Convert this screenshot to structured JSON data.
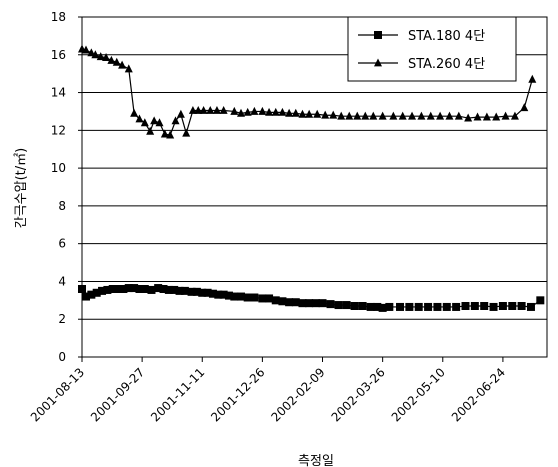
{
  "chart_data": {
    "type": "line",
    "title": "",
    "xlabel": "측정일",
    "ylabel": "간극수압(t/㎡)",
    "ylim": [
      0,
      18
    ],
    "yticks": [
      "0",
      "2",
      "4",
      "6",
      "8",
      "10",
      "12",
      "14",
      "16",
      "18"
    ],
    "xlim": [
      "2001-08-13",
      "2002-07-27"
    ],
    "xticks": [
      "2001-08-13",
      "2001-09-27",
      "2001-11-11",
      "2001-12-26",
      "2002-02-09",
      "2002-03-26",
      "2002-05-10",
      "2002-06-24"
    ],
    "grid": "horizontal",
    "legend_position": "top-right",
    "series": [
      {
        "name": "STA.180 4단",
        "marker": "square",
        "color": "#000000",
        "points": [
          [
            "2001-08-13",
            3.6
          ],
          [
            "2001-08-16",
            3.2
          ],
          [
            "2001-08-20",
            3.3
          ],
          [
            "2001-08-24",
            3.4
          ],
          [
            "2001-08-28",
            3.5
          ],
          [
            "2001-09-01",
            3.55
          ],
          [
            "2001-09-05",
            3.6
          ],
          [
            "2001-09-09",
            3.6
          ],
          [
            "2001-09-13",
            3.6
          ],
          [
            "2001-09-17",
            3.65
          ],
          [
            "2001-09-21",
            3.65
          ],
          [
            "2001-09-25",
            3.6
          ],
          [
            "2001-09-29",
            3.6
          ],
          [
            "2001-10-04",
            3.55
          ],
          [
            "2001-10-09",
            3.65
          ],
          [
            "2001-10-13",
            3.6
          ],
          [
            "2001-10-17",
            3.55
          ],
          [
            "2001-10-21",
            3.55
          ],
          [
            "2001-10-25",
            3.5
          ],
          [
            "2001-10-29",
            3.5
          ],
          [
            "2001-11-03",
            3.45
          ],
          [
            "2001-11-07",
            3.45
          ],
          [
            "2001-11-11",
            3.4
          ],
          [
            "2001-11-15",
            3.4
          ],
          [
            "2001-11-19",
            3.35
          ],
          [
            "2001-11-23",
            3.3
          ],
          [
            "2001-11-27",
            3.3
          ],
          [
            "2001-12-01",
            3.25
          ],
          [
            "2001-12-05",
            3.2
          ],
          [
            "2001-12-10",
            3.2
          ],
          [
            "2001-12-15",
            3.15
          ],
          [
            "2001-12-20",
            3.15
          ],
          [
            "2001-12-26",
            3.1
          ],
          [
            "2001-12-31",
            3.1
          ],
          [
            "2002-01-05",
            3.0
          ],
          [
            "2002-01-10",
            2.95
          ],
          [
            "2002-01-15",
            2.9
          ],
          [
            "2002-01-20",
            2.9
          ],
          [
            "2002-01-25",
            2.85
          ],
          [
            "2002-01-30",
            2.85
          ],
          [
            "2002-02-04",
            2.85
          ],
          [
            "2002-02-09",
            2.85
          ],
          [
            "2002-02-15",
            2.8
          ],
          [
            "2002-02-21",
            2.75
          ],
          [
            "2002-02-27",
            2.75
          ],
          [
            "2002-03-05",
            2.7
          ],
          [
            "2002-03-11",
            2.7
          ],
          [
            "2002-03-17",
            2.65
          ],
          [
            "2002-03-22",
            2.65
          ],
          [
            "2002-03-26",
            2.6
          ],
          [
            "2002-03-31",
            2.65
          ],
          [
            "2002-04-08",
            2.65
          ],
          [
            "2002-04-15",
            2.65
          ],
          [
            "2002-04-22",
            2.65
          ],
          [
            "2002-04-29",
            2.65
          ],
          [
            "2002-05-06",
            2.65
          ],
          [
            "2002-05-13",
            2.65
          ],
          [
            "2002-05-20",
            2.65
          ],
          [
            "2002-05-27",
            2.7
          ],
          [
            "2002-06-03",
            2.7
          ],
          [
            "2002-06-10",
            2.7
          ],
          [
            "2002-06-17",
            2.65
          ],
          [
            "2002-06-24",
            2.7
          ],
          [
            "2002-07-01",
            2.7
          ],
          [
            "2002-07-08",
            2.7
          ],
          [
            "2002-07-15",
            2.65
          ],
          [
            "2002-07-22",
            3.0
          ]
        ]
      },
      {
        "name": "STA.260 4단",
        "marker": "triangle",
        "color": "#000000",
        "points": [
          [
            "2001-08-13",
            16.3
          ],
          [
            "2001-08-16",
            16.25
          ],
          [
            "2001-08-20",
            16.1
          ],
          [
            "2001-08-23",
            16.0
          ],
          [
            "2001-08-27",
            15.9
          ],
          [
            "2001-08-31",
            15.85
          ],
          [
            "2001-09-04",
            15.7
          ],
          [
            "2001-09-08",
            15.6
          ],
          [
            "2001-09-12",
            15.45
          ],
          [
            "2001-09-17",
            15.25
          ],
          [
            "2001-09-21",
            12.9
          ],
          [
            "2001-09-25",
            12.6
          ],
          [
            "2001-09-29",
            12.4
          ],
          [
            "2001-10-03",
            11.95
          ],
          [
            "2001-10-06",
            12.5
          ],
          [
            "2001-10-10",
            12.4
          ],
          [
            "2001-10-14",
            11.8
          ],
          [
            "2001-10-18",
            11.75
          ],
          [
            "2001-10-22",
            12.5
          ],
          [
            "2001-10-26",
            12.85
          ],
          [
            "2001-10-30",
            11.85
          ],
          [
            "2001-11-04",
            13.05
          ],
          [
            "2001-11-08",
            13.05
          ],
          [
            "2001-11-12",
            13.05
          ],
          [
            "2001-11-17",
            13.05
          ],
          [
            "2001-11-22",
            13.05
          ],
          [
            "2001-11-27",
            13.05
          ],
          [
            "2001-12-05",
            13.0
          ],
          [
            "2001-12-10",
            12.9
          ],
          [
            "2001-12-15",
            12.95
          ],
          [
            "2001-12-20",
            13.0
          ],
          [
            "2001-12-26",
            13.0
          ],
          [
            "2001-12-31",
            12.95
          ],
          [
            "2002-01-05",
            12.95
          ],
          [
            "2002-01-10",
            12.95
          ],
          [
            "2002-01-15",
            12.9
          ],
          [
            "2002-01-20",
            12.9
          ],
          [
            "2002-01-25",
            12.85
          ],
          [
            "2002-01-30",
            12.85
          ],
          [
            "2002-02-05",
            12.85
          ],
          [
            "2002-02-11",
            12.8
          ],
          [
            "2002-02-17",
            12.8
          ],
          [
            "2002-02-23",
            12.75
          ],
          [
            "2002-03-01",
            12.75
          ],
          [
            "2002-03-07",
            12.75
          ],
          [
            "2002-03-13",
            12.75
          ],
          [
            "2002-03-19",
            12.75
          ],
          [
            "2002-03-26",
            12.75
          ],
          [
            "2002-04-03",
            12.75
          ],
          [
            "2002-04-10",
            12.75
          ],
          [
            "2002-04-17",
            12.75
          ],
          [
            "2002-04-24",
            12.75
          ],
          [
            "2002-05-01",
            12.75
          ],
          [
            "2002-05-08",
            12.75
          ],
          [
            "2002-05-15",
            12.75
          ],
          [
            "2002-05-22",
            12.75
          ],
          [
            "2002-05-29",
            12.65
          ],
          [
            "2002-06-05",
            12.7
          ],
          [
            "2002-06-12",
            12.7
          ],
          [
            "2002-06-19",
            12.7
          ],
          [
            "2002-06-26",
            12.75
          ],
          [
            "2002-07-03",
            12.75
          ],
          [
            "2002-07-10",
            13.2
          ],
          [
            "2002-07-16",
            14.7
          ]
        ]
      }
    ]
  }
}
